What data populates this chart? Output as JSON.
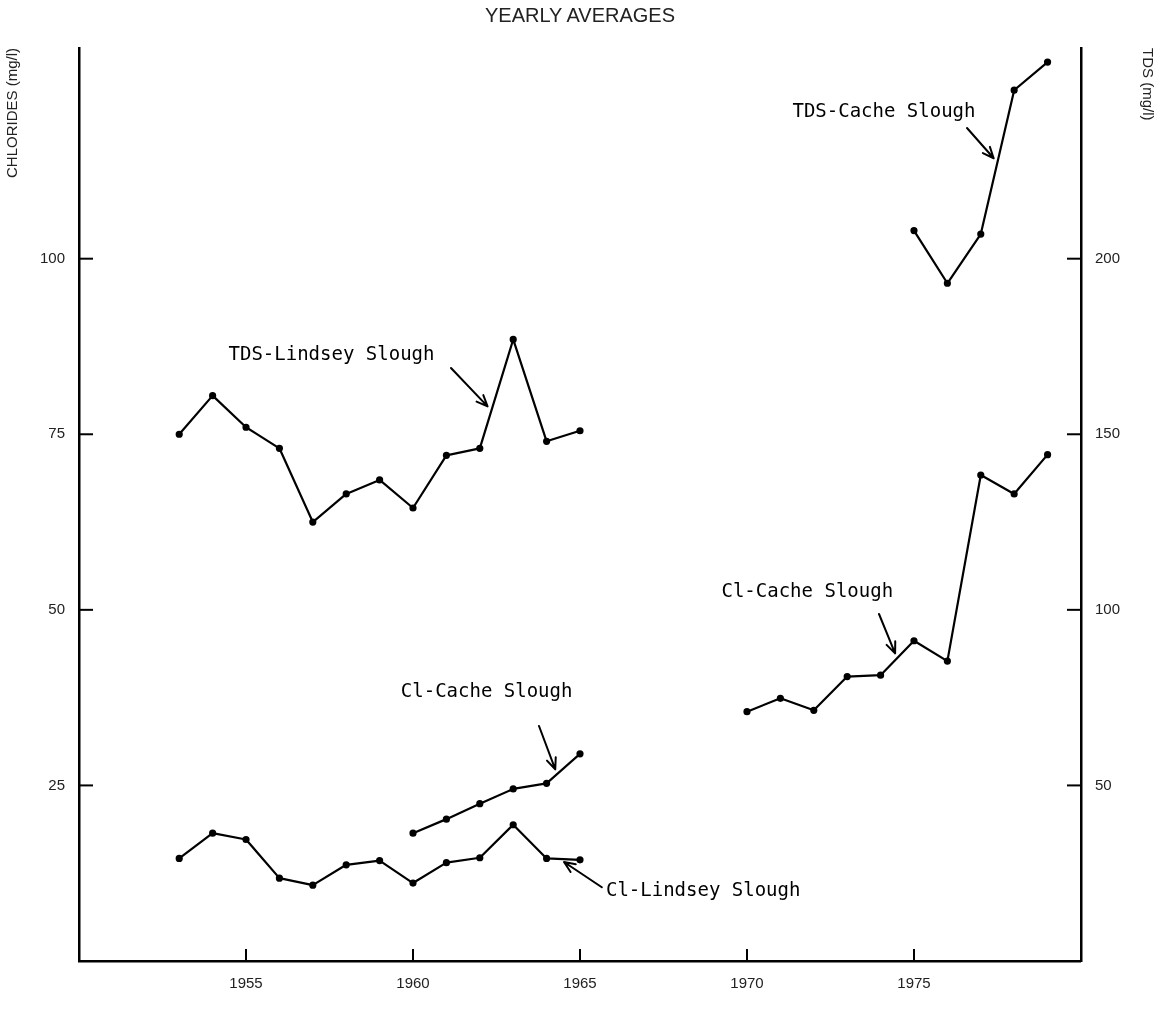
{
  "chart_data": {
    "type": "line",
    "title": "YEARLY AVERAGES",
    "ylabel": "CHLORIDES (mg/l)",
    "y2label": "TDS (mg/l)",
    "xlim": [
      1950,
      1980
    ],
    "xticks": [
      1955,
      1960,
      1965,
      1970,
      1975
    ],
    "ylim": [
      0,
      130
    ],
    "yticks": [
      25,
      50,
      75,
      100
    ],
    "y2lim": [
      0,
      260
    ],
    "y2ticks": [
      50,
      100,
      150,
      200
    ],
    "marker": "circle",
    "line_style": "solid",
    "legend": false,
    "grid": false,
    "series": [
      {
        "name": "TDS-Lindsey Slough",
        "color": "#000000",
        "axis": "y2",
        "x": [
          1953,
          1954,
          1955,
          1956,
          1957,
          1958,
          1959,
          1960,
          1961,
          1962,
          1963,
          1964,
          1965
        ],
        "values": [
          150,
          161,
          152,
          146,
          125,
          133,
          137,
          129,
          144,
          146,
          177,
          148,
          151
        ]
      },
      {
        "name": "Cl-Lindsey Slough",
        "color": "#000000",
        "axis": "y",
        "x": [
          1953,
          1954,
          1955,
          1956,
          1957,
          1958,
          1959,
          1960,
          1961,
          1962,
          1963,
          1964,
          1965
        ],
        "values": [
          14.6,
          18.2,
          17.3,
          11.8,
          10.8,
          13.7,
          14.3,
          11.1,
          14.0,
          14.7,
          19.4,
          14.6,
          14.4
        ]
      },
      {
        "name": "Cl-Cache Slough",
        "color": "#000000",
        "axis": "y",
        "x": [
          1960,
          1961,
          1962,
          1963,
          1964,
          1965
        ],
        "values": [
          18.2,
          20.2,
          22.4,
          24.5,
          25.3,
          29.5
        ]
      },
      {
        "name": "Cl-Cache Slough",
        "color": "#000000",
        "axis": "y",
        "x": [
          1970,
          1971,
          1972,
          1973,
          1974,
          1975,
          1976,
          1977,
          1978,
          1979
        ],
        "values": [
          35.5,
          37.4,
          35.7,
          40.5,
          40.7,
          45.6,
          42.7,
          69.2,
          66.5,
          72.1
        ]
      },
      {
        "name": "TDS-Cache Slough",
        "color": "#000000",
        "axis": "y2",
        "x": [
          1975,
          1976,
          1977,
          1978,
          1979
        ],
        "values": [
          208,
          193,
          207,
          248,
          256
        ]
      }
    ]
  }
}
